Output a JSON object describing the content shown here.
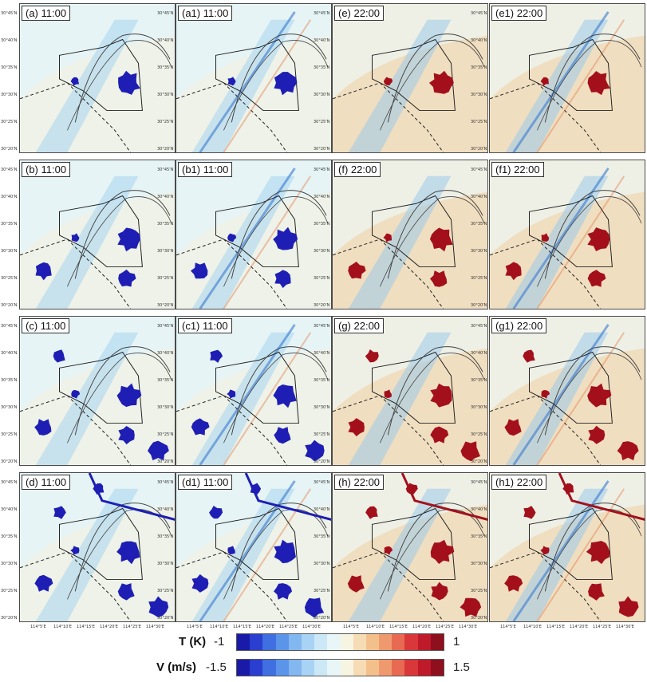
{
  "panels": [
    {
      "label": "(a) 11:00",
      "col": 0,
      "row": 0,
      "scheme": "blue",
      "kind": "T"
    },
    {
      "label": "(a1) 11:00",
      "col": 1,
      "row": 0,
      "scheme": "blue",
      "kind": "V"
    },
    {
      "label": "(e) 22:00",
      "col": 2,
      "row": 0,
      "scheme": "red",
      "kind": "T"
    },
    {
      "label": "(e1) 22:00",
      "col": 3,
      "row": 0,
      "scheme": "red",
      "kind": "V"
    },
    {
      "label": "(b) 11:00",
      "col": 0,
      "row": 1,
      "scheme": "blue",
      "kind": "T"
    },
    {
      "label": "(b1) 11:00",
      "col": 1,
      "row": 1,
      "scheme": "blue",
      "kind": "V"
    },
    {
      "label": "(f) 22:00",
      "col": 2,
      "row": 1,
      "scheme": "red",
      "kind": "T"
    },
    {
      "label": "(f1) 22:00",
      "col": 3,
      "row": 1,
      "scheme": "red",
      "kind": "V"
    },
    {
      "label": "(c) 11:00",
      "col": 0,
      "row": 2,
      "scheme": "blue",
      "kind": "T"
    },
    {
      "label": "(c1) 11:00",
      "col": 1,
      "row": 2,
      "scheme": "blue",
      "kind": "V"
    },
    {
      "label": "(g) 22:00",
      "col": 2,
      "row": 2,
      "scheme": "red",
      "kind": "T"
    },
    {
      "label": "(g1) 22:00",
      "col": 3,
      "row": 2,
      "scheme": "red",
      "kind": "V"
    },
    {
      "label": "(d) 11:00",
      "col": 0,
      "row": 3,
      "scheme": "blue",
      "kind": "T"
    },
    {
      "label": "(d1) 11:00",
      "col": 1,
      "row": 3,
      "scheme": "blue",
      "kind": "V"
    },
    {
      "label": "(h) 22:00",
      "col": 2,
      "row": 3,
      "scheme": "red",
      "kind": "T"
    },
    {
      "label": "(h1) 22:00",
      "col": 3,
      "row": 3,
      "scheme": "red",
      "kind": "V"
    }
  ],
  "y_ticks": [
    "30°45'N",
    "30°40'N",
    "30°35'N",
    "30°30'N",
    "30°25'N",
    "30°20'N"
  ],
  "x_ticks": [
    "114°5'E",
    "114°10'E",
    "114°15'E",
    "114°20'E",
    "114°25'E",
    "114°30'E"
  ],
  "legend": {
    "t_label": "T (K)",
    "t_min": "-1",
    "t_max": "1",
    "v_label": "V (m/s)",
    "v_min": "-1.5",
    "v_max": "1.5",
    "colors": [
      "#1a1aa8",
      "#2a3ed0",
      "#3f6fe0",
      "#5b95ea",
      "#82b7f0",
      "#a9d3f4",
      "#cce8f6",
      "#e8f6f7",
      "#f8f4e2",
      "#f6dcb4",
      "#f3c08c",
      "#ef9a6e",
      "#e86a52",
      "#d9373a",
      "#bf1a2a",
      "#8e0f1e"
    ]
  }
}
